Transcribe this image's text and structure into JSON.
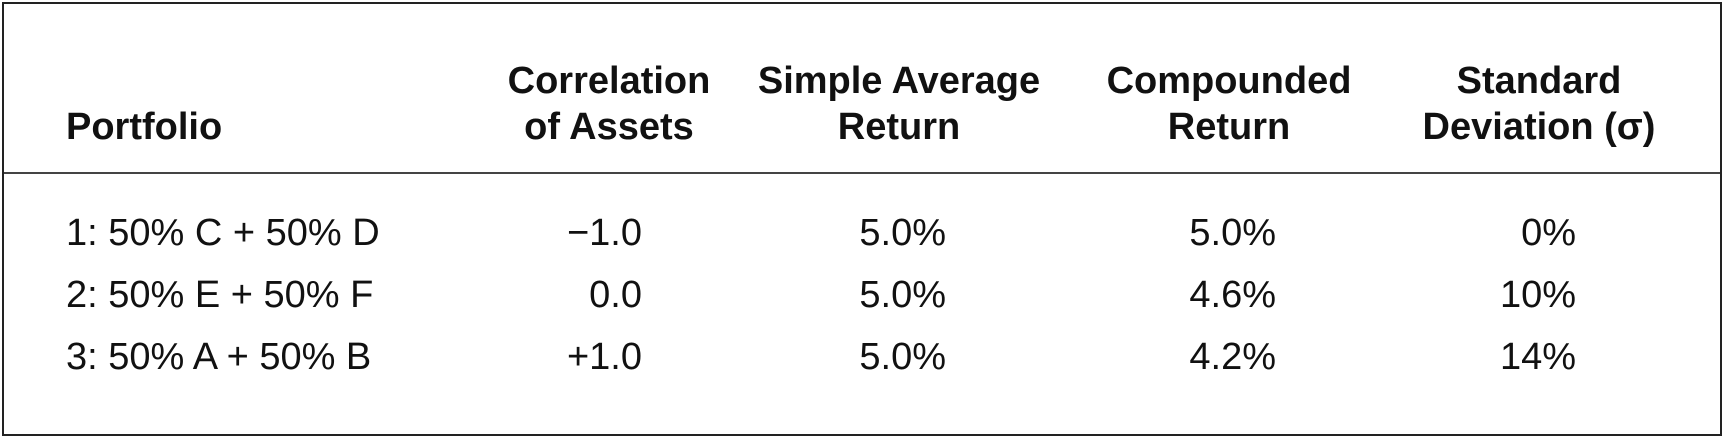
{
  "table": {
    "headers": {
      "portfolio": [
        "Portfolio"
      ],
      "correlation": [
        "Correlation",
        "of Assets"
      ],
      "simple_average": [
        "Simple Average",
        "Return"
      ],
      "compounded": [
        "Compounded",
        "Return"
      ],
      "std_dev": [
        "Standard",
        "Deviation (σ)"
      ]
    },
    "rows": [
      {
        "portfolio": "1: 50% C + 50% D",
        "correlation": "−1.0",
        "simple_average": "5.0%",
        "compounded": "5.0%",
        "std_dev": "0%"
      },
      {
        "portfolio": "2: 50% E + 50% F",
        "correlation": "0.0",
        "simple_average": "5.0%",
        "compounded": "4.6%",
        "std_dev": "10%"
      },
      {
        "portfolio": "3: 50% A + 50% B",
        "correlation": "+1.0",
        "simple_average": "5.0%",
        "compounded": "4.2%",
        "std_dev": "14%"
      }
    ]
  }
}
